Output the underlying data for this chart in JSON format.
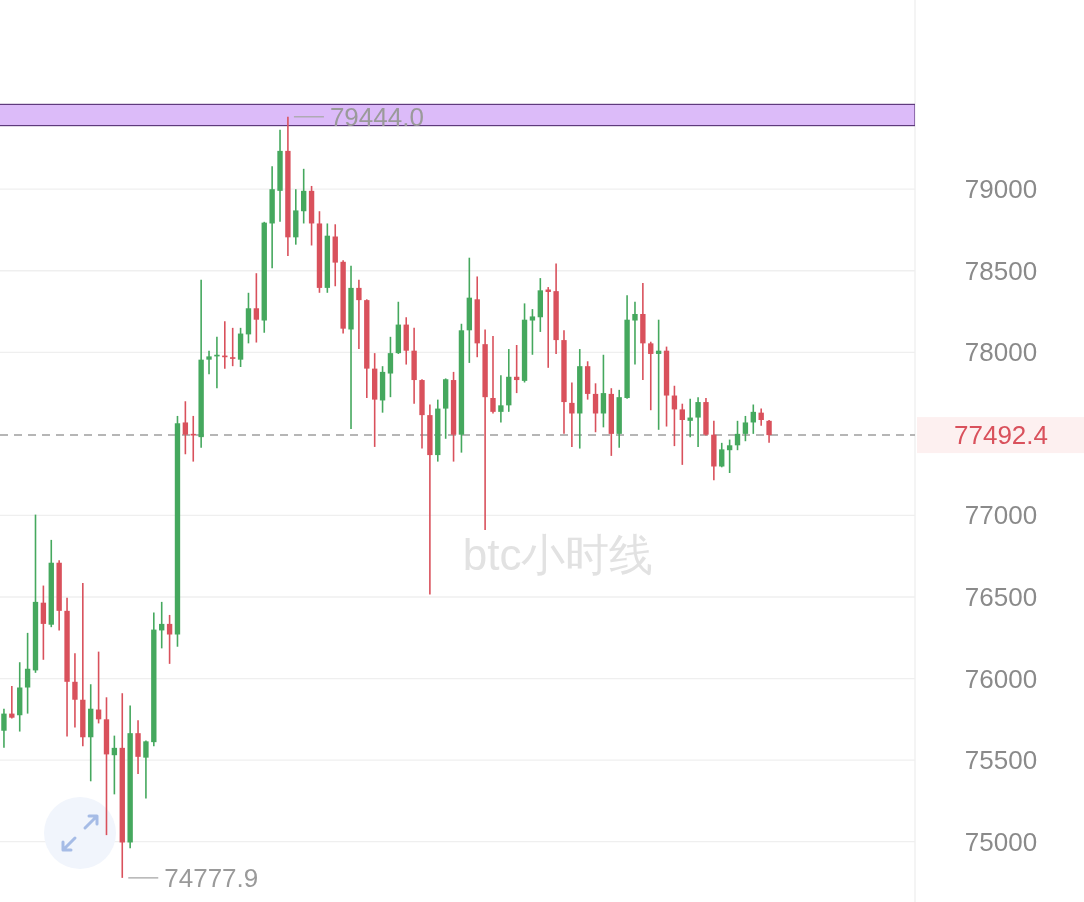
{
  "chart_data": {
    "type": "candlestick",
    "categories": [
      null,
      null,
      null,
      null,
      null,
      null,
      null,
      null,
      null,
      null,
      null,
      null,
      null,
      null,
      null,
      null,
      null,
      null,
      null,
      null,
      null,
      null,
      null,
      null,
      null,
      null,
      null,
      null,
      null,
      null,
      null,
      null,
      null,
      null,
      null,
      null,
      null,
      null,
      null,
      null,
      null,
      null,
      null,
      null,
      null,
      null,
      null,
      null,
      null,
      null,
      null,
      null,
      null,
      null,
      null,
      null,
      null,
      null,
      null,
      null,
      null,
      null,
      null,
      null,
      null,
      null,
      null,
      null,
      null,
      null,
      null,
      null,
      null,
      null,
      null,
      null,
      null,
      null,
      null,
      null,
      null,
      null,
      null,
      null,
      null,
      null,
      null,
      null,
      null,
      null,
      null,
      null,
      null,
      null,
      null,
      null,
      null,
      null,
      null,
      null,
      null,
      null,
      null,
      null,
      null,
      null,
      null,
      null,
      null,
      null,
      null,
      null,
      null,
      null,
      null,
      null
    ],
    "ohlc": [
      [
        75680,
        75815,
        75575,
        75785
      ],
      [
        75785,
        75955,
        75755,
        75760
      ],
      [
        75775,
        76100,
        75675,
        75945
      ],
      [
        75945,
        76280,
        75785,
        76060
      ],
      [
        76050,
        77005,
        76035,
        76470
      ],
      [
        76465,
        76570,
        76115,
        76335
      ],
      [
        76330,
        76850,
        76315,
        76710
      ],
      [
        76710,
        76725,
        76295,
        76415
      ],
      [
        76415,
        76495,
        75645,
        75980
      ],
      [
        75980,
        76155,
        75700,
        75870
      ],
      [
        75870,
        76585,
        75585,
        75640
      ],
      [
        75640,
        75965,
        75370,
        75815
      ],
      [
        75810,
        76165,
        75725,
        75750
      ],
      [
        75750,
        75885,
        75040,
        75535
      ],
      [
        75530,
        75650,
        75290,
        75575
      ],
      [
        75575,
        75910,
        74777.9,
        74995
      ],
      [
        74995,
        75835,
        74960,
        75665
      ],
      [
        75665,
        75745,
        75415,
        75520
      ],
      [
        75515,
        75620,
        75265,
        75615
      ],
      [
        75610,
        76405,
        75585,
        76300
      ],
      [
        76295,
        76470,
        76185,
        76335
      ],
      [
        76335,
        76390,
        76090,
        76270
      ],
      [
        76270,
        77610,
        76195,
        77565
      ],
      [
        77570,
        77700,
        77375,
        77495
      ],
      [
        77500,
        77610,
        77330,
        77490
      ],
      [
        77480,
        78445,
        77415,
        77955
      ],
      [
        77955,
        78010,
        77865,
        77975
      ],
      [
        77975,
        78095,
        77780,
        77985
      ],
      [
        77980,
        78190,
        77900,
        77970
      ],
      [
        77970,
        78150,
        77915,
        77960
      ],
      [
        77955,
        78150,
        77910,
        78115
      ],
      [
        78110,
        78365,
        78055,
        78270
      ],
      [
        78270,
        78485,
        78060,
        78200
      ],
      [
        78195,
        78800,
        78120,
        78795
      ],
      [
        78790,
        79140,
        78515,
        79000
      ],
      [
        78990,
        79365,
        78800,
        79235
      ],
      [
        79235,
        79444.0,
        78590,
        78705
      ],
      [
        78705,
        79000,
        78660,
        78870
      ],
      [
        78865,
        79125,
        78790,
        78990
      ],
      [
        78990,
        79020,
        78655,
        78790
      ],
      [
        78790,
        78865,
        78365,
        78395
      ],
      [
        78395,
        78790,
        78365,
        78715
      ],
      [
        78710,
        78785,
        78405,
        78550
      ],
      [
        78555,
        78565,
        78115,
        78145
      ],
      [
        78140,
        78530,
        77530,
        78395
      ],
      [
        78395,
        78445,
        78020,
        78320
      ],
      [
        78320,
        78325,
        77720,
        77900
      ],
      [
        77900,
        77995,
        77420,
        77710
      ],
      [
        77705,
        77915,
        77630,
        77880
      ],
      [
        77870,
        78095,
        77725,
        77995
      ],
      [
        77995,
        78310,
        77990,
        78170
      ],
      [
        78170,
        78215,
        77925,
        78010
      ],
      [
        78010,
        78150,
        77685,
        77830
      ],
      [
        77830,
        77835,
        77410,
        77615
      ],
      [
        77615,
        77680,
        76515,
        77370
      ],
      [
        77370,
        77710,
        77330,
        77655
      ],
      [
        77655,
        77840,
        77470,
        77835
      ],
      [
        77830,
        77880,
        77330,
        77495
      ],
      [
        77495,
        78175,
        77385,
        78135
      ],
      [
        78135,
        78580,
        77935,
        78335
      ],
      [
        78325,
        78465,
        77970,
        78055
      ],
      [
        78050,
        78140,
        76910,
        77725
      ],
      [
        77720,
        78100,
        77625,
        77635
      ],
      [
        77635,
        77860,
        77570,
        77675
      ],
      [
        77675,
        78020,
        77635,
        77850
      ],
      [
        77850,
        78045,
        77750,
        77830
      ],
      [
        77825,
        78300,
        77815,
        78200
      ],
      [
        78195,
        78265,
        77985,
        78220
      ],
      [
        78215,
        78455,
        78125,
        78380
      ],
      [
        78385,
        78400,
        77905,
        78370
      ],
      [
        78375,
        78545,
        77990,
        78075
      ],
      [
        78075,
        78135,
        77500,
        77695
      ],
      [
        77690,
        77815,
        77420,
        77625
      ],
      [
        77625,
        78020,
        77410,
        77915
      ],
      [
        77915,
        77945,
        77710,
        77745
      ],
      [
        77745,
        77810,
        77510,
        77625
      ],
      [
        77625,
        77985,
        77540,
        77750
      ],
      [
        77745,
        77780,
        77365,
        77500
      ],
      [
        77500,
        77770,
        77415,
        77725
      ],
      [
        77720,
        78350,
        77715,
        78200
      ],
      [
        78195,
        78310,
        77925,
        78235
      ],
      [
        78235,
        78425,
        77830,
        78055
      ],
      [
        78055,
        78065,
        77645,
        77990
      ],
      [
        77990,
        78200,
        77525,
        78010
      ],
      [
        78010,
        78035,
        77545,
        77735
      ],
      [
        77735,
        77795,
        77425,
        77650
      ],
      [
        77650,
        77685,
        77310,
        77585
      ],
      [
        77580,
        77715,
        77480,
        77600
      ],
      [
        77600,
        77725,
        77420,
        77695
      ],
      [
        77695,
        77720,
        77490,
        77495
      ],
      [
        77495,
        77580,
        77215,
        77300
      ],
      [
        77300,
        77445,
        77295,
        77405
      ],
      [
        77400,
        77465,
        77260,
        77430
      ],
      [
        77430,
        77580,
        77400,
        77500
      ],
      [
        77500,
        77610,
        77455,
        77570
      ],
      [
        77570,
        77680,
        77500,
        77635
      ],
      [
        77630,
        77655,
        77550,
        77585
      ],
      [
        77580,
        77585,
        77445,
        77492.4
      ],
      null,
      null,
      null,
      null,
      null,
      null,
      null,
      null,
      null,
      null,
      null,
      null,
      null,
      null,
      null,
      null,
      null,
      null
    ],
    "colors": [
      "#45a85e",
      "#d9515c",
      "#45a85e",
      "#45a85e",
      "#45a85e",
      "#d9515c",
      "#45a85e",
      "#d9515c",
      "#d9515c",
      "#d9515c",
      "#d9515c",
      "#45a85e",
      "#d9515c",
      "#d9515c",
      "#45a85e",
      "#d9515c",
      "#45a85e",
      "#d9515c",
      "#45a85e",
      "#45a85e",
      "#45a85e",
      "#d9515c",
      "#45a85e",
      "#d9515c",
      "#d9515c",
      "#45a85e",
      "#45a85e",
      "#45a85e",
      "#d9515c",
      "#d9515c",
      "#45a85e",
      "#45a85e",
      "#d9515c",
      "#45a85e",
      "#45a85e",
      "#45a85e",
      "#d9515c",
      "#45a85e",
      "#45a85e",
      "#d9515c",
      "#d9515c",
      "#45a85e",
      "#d9515c",
      "#d9515c",
      "#45a85e",
      "#d9515c",
      "#d9515c",
      "#d9515c",
      "#45a85e",
      "#45a85e",
      "#45a85e",
      "#d9515c",
      "#d9515c",
      "#d9515c",
      "#d9515c",
      "#45a85e",
      "#45a85e",
      "#d9515c",
      "#45a85e",
      "#45a85e",
      "#d9515c",
      "#d9515c",
      "#d9515c",
      "#45a85e",
      "#45a85e",
      "#d9515c",
      "#45a85e",
      "#45a85e",
      "#45a85e",
      "#d9515c",
      "#d9515c",
      "#d9515c",
      "#d9515c",
      "#45a85e",
      "#d9515c",
      "#d9515c",
      "#45a85e",
      "#d9515c",
      "#45a85e",
      "#45a85e",
      "#45a85e",
      "#d9515c",
      "#d9515c",
      "#45a85e",
      "#d9515c",
      "#d9515c",
      "#d9515c",
      "#45a85e",
      "#45a85e",
      "#d9515c",
      "#d9515c",
      "#45a85e",
      "#45a85e",
      "#45a85e",
      "#45a85e",
      "#45a85e",
      "#d9515c",
      "#d9515c",
      null,
      null,
      null,
      null,
      null,
      null,
      null,
      null,
      null,
      null,
      null,
      null,
      null,
      null,
      null,
      null,
      null,
      null
    ],
    "ylim": [
      74630,
      80160
    ],
    "yticks": [
      75000,
      75500,
      76000,
      76500,
      77000,
      78000,
      78500,
      79000
    ],
    "grid": "y",
    "tick_labels": "y",
    "bands": [
      {
        "axis": "y",
        "from": 79390,
        "to": 79520,
        "color": "#dcbbf9"
      }
    ],
    "ref_lines": [
      {
        "axis": "y",
        "value": 77492.4,
        "label": "77492.4",
        "color": "#9e9e9e",
        "line_style": "dashed"
      }
    ],
    "annotations": [
      "79444.0",
      "74777.9",
      "btc小时线"
    ]
  }
}
